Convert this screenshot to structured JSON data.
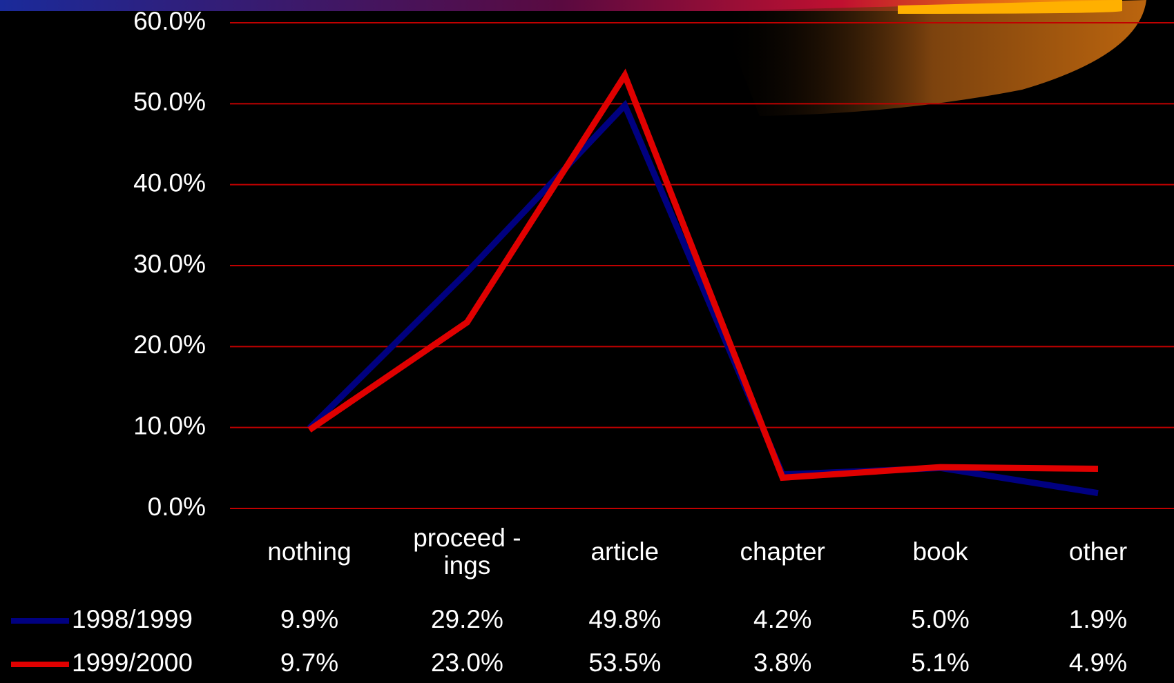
{
  "chart_data": {
    "type": "line",
    "categories": [
      "nothing",
      "proceed -\nings",
      "article",
      "chapter",
      "book",
      "other"
    ],
    "series": [
      {
        "name": "1998/1999",
        "color": "#000080",
        "values": [
          9.9,
          29.2,
          49.8,
          4.2,
          5.0,
          1.9
        ],
        "value_labels": [
          "9.9%",
          "29.2%",
          "49.8%",
          "4.2%",
          "5.0%",
          "1.9%"
        ]
      },
      {
        "name": "1999/2000",
        "color": "#e00000",
        "values": [
          9.7,
          23.0,
          53.5,
          3.8,
          5.1,
          4.9
        ],
        "value_labels": [
          "9.7%",
          "23.0%",
          "53.5%",
          "3.8%",
          "5.1%",
          "4.9%"
        ]
      }
    ],
    "ylim": [
      0,
      60
    ],
    "yticks": [
      {
        "value": 0,
        "label": "0.0%"
      },
      {
        "value": 10,
        "label": "10.0%"
      },
      {
        "value": 20,
        "label": "20.0%"
      },
      {
        "value": 30,
        "label": "30.0%"
      },
      {
        "value": 40,
        "label": "40.0%"
      },
      {
        "value": 50,
        "label": "50.0%"
      },
      {
        "value": 60,
        "label": "60.0%"
      }
    ],
    "grid": true,
    "grid_color": "#c00000"
  }
}
